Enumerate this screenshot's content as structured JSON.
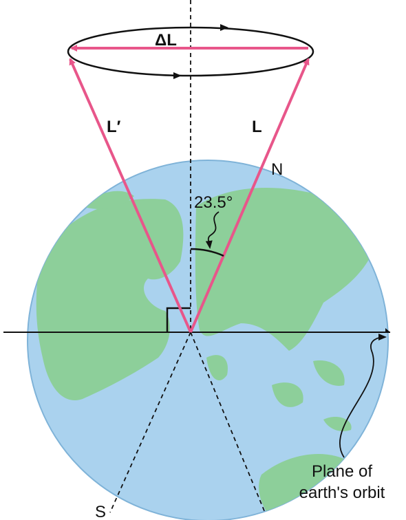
{
  "labels": {
    "delta_l": "ΔL",
    "l_prime": "L′",
    "l": "L",
    "north": "N",
    "angle": "23.5°",
    "south": "S",
    "plane_line1": "Plane of",
    "plane_line2": "earth's orbit"
  }
}
